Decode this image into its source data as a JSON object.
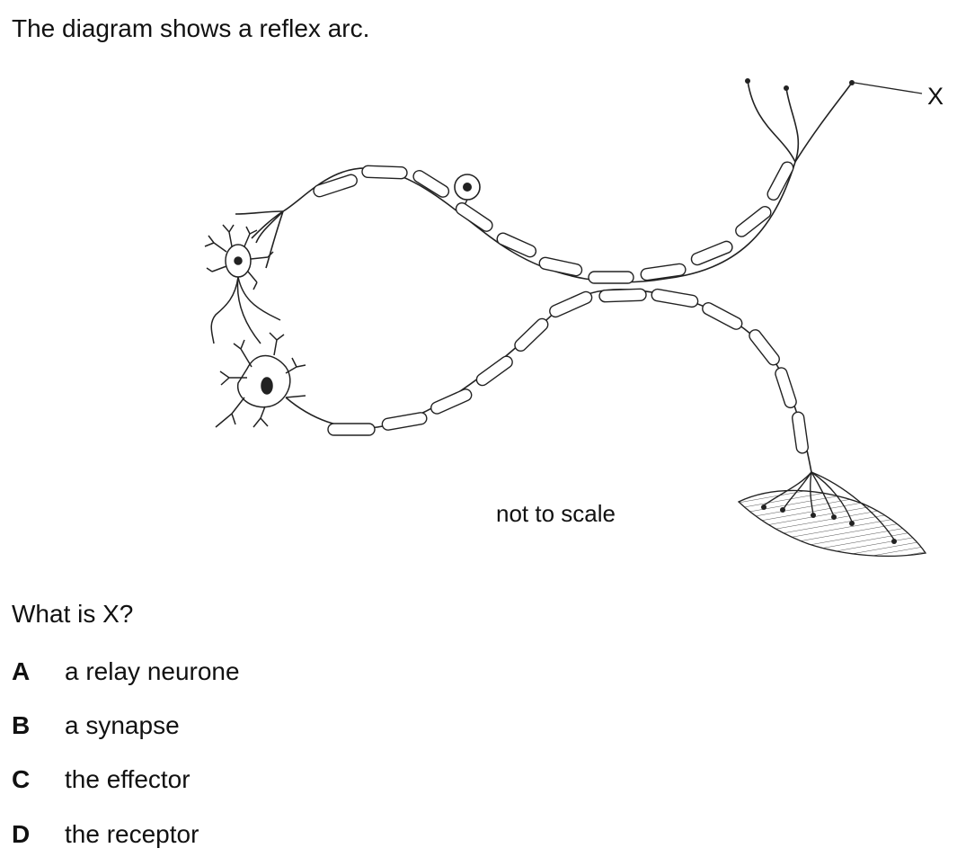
{
  "question": {
    "intro": "The diagram shows a reflex arc.",
    "prompt": "What is X?"
  },
  "diagram": {
    "label_x": "X",
    "scale_note": "not to scale",
    "parts": [
      "sensory-neurone",
      "relay-neurone",
      "motor-neurone",
      "receptor-endings",
      "effector-muscle",
      "cell-body"
    ]
  },
  "options": [
    {
      "letter": "A",
      "text": "a relay neurone"
    },
    {
      "letter": "B",
      "text": "a synapse"
    },
    {
      "letter": "C",
      "text": "the effector"
    },
    {
      "letter": "D",
      "text": "the receptor"
    }
  ]
}
